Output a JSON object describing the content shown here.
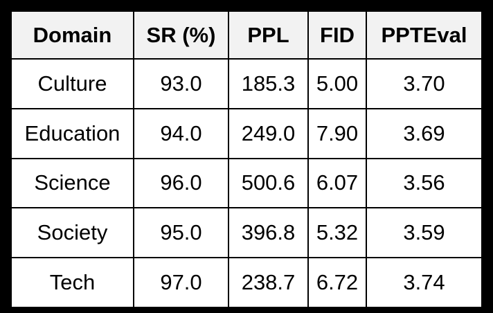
{
  "chart_data": {
    "type": "table",
    "columns": [
      "Domain",
      "SR (%)",
      "PPL",
      "FID",
      "PPTEval"
    ],
    "rows": [
      [
        "Culture",
        "93.0",
        "185.3",
        "5.00",
        "3.70"
      ],
      [
        "Education",
        "94.0",
        "249.0",
        "7.90",
        "3.69"
      ],
      [
        "Science",
        "96.0",
        "500.6",
        "6.07",
        "3.56"
      ],
      [
        "Society",
        "95.0",
        "396.8",
        "5.32",
        "3.59"
      ],
      [
        "Tech",
        "97.0",
        "238.7",
        "6.72",
        "3.74"
      ]
    ]
  },
  "colors": {
    "border": "#000000",
    "header_background": "#f2f2f2",
    "cell_background": "#ffffff",
    "text": "#000000"
  }
}
